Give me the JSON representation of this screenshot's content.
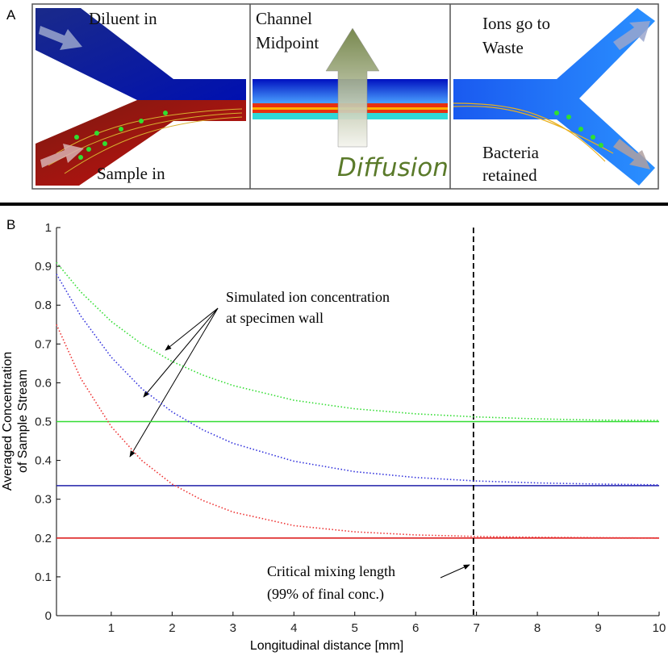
{
  "panel_a": {
    "label": "A",
    "inlet_left": {
      "top": "Diluent in",
      "bottom": "Sample in"
    },
    "midpoint": {
      "title": [
        "Channel",
        "Midpoint"
      ],
      "arrow_label": "Diffusion"
    },
    "outlet_right": {
      "top": [
        "Ions go to",
        "Waste"
      ],
      "bottom": [
        "Bacteria",
        "retained"
      ]
    }
  },
  "chart_data": {
    "type": "line",
    "panel_label": "B",
    "xlabel": "Longitudinal distance [mm]",
    "ylabel": [
      "Averaged Concentration",
      "of Sample Stream"
    ],
    "x": [
      0.1,
      0.5,
      1,
      1.5,
      2,
      2.5,
      3,
      4,
      5,
      6,
      7,
      8,
      9,
      10
    ],
    "series": [
      {
        "color": "#33dd33",
        "values": [
          0.91,
          0.834,
          0.758,
          0.7,
          0.655,
          0.62,
          0.593,
          0.555,
          0.533,
          0.52,
          0.512,
          0.507,
          0.504,
          0.503
        ]
      },
      {
        "color": "#3333dd",
        "values": [
          0.88,
          0.772,
          0.666,
          0.585,
          0.525,
          0.479,
          0.444,
          0.398,
          0.371,
          0.356,
          0.347,
          0.342,
          0.339,
          0.337
        ]
      },
      {
        "color": "#ee3333",
        "values": [
          0.75,
          0.611,
          0.487,
          0.4,
          0.339,
          0.297,
          0.267,
          0.232,
          0.216,
          0.208,
          0.204,
          0.202,
          0.201,
          0.2
        ]
      }
    ],
    "hlines": [
      {
        "value": 0.5,
        "color": "#33dd33"
      },
      {
        "value": 0.335,
        "color": "#2222aa"
      },
      {
        "value": 0.2,
        "color": "#dd2222"
      }
    ],
    "vline": {
      "value": 6.95,
      "color": "#000000"
    },
    "annotations": [
      {
        "text": [
          "Simulated ion concentration",
          "at specimen wall"
        ]
      },
      {
        "text": [
          "Critical mixing length",
          "(99% of final conc.)"
        ]
      }
    ],
    "xlim": [
      0.1,
      10
    ],
    "ylim": [
      0,
      1
    ],
    "xticks": [
      1,
      2,
      3,
      4,
      5,
      6,
      7,
      8,
      9,
      10
    ],
    "yticks": [
      0,
      0.1,
      0.2,
      0.3,
      0.4,
      0.5,
      0.6,
      0.7,
      0.8,
      0.9,
      1
    ]
  }
}
